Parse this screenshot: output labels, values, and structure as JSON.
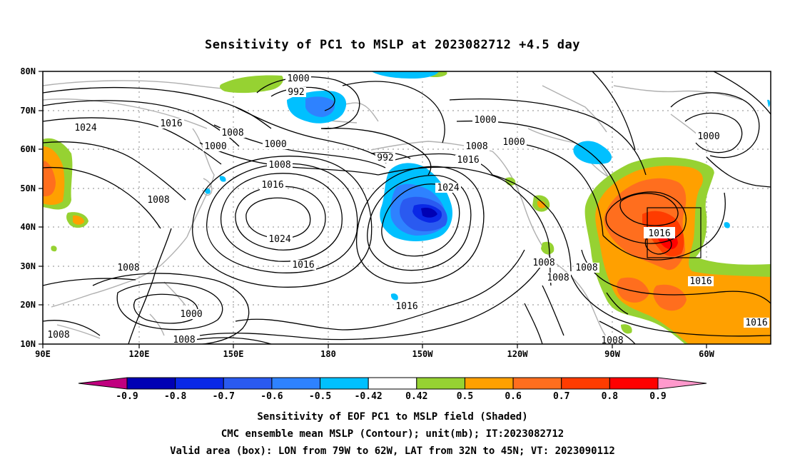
{
  "title": "Sensitivity of PC1 to MSLP at 2023082712 +4.5 day",
  "lat_ticks": [
    "80N",
    "70N",
    "60N",
    "50N",
    "40N",
    "30N",
    "20N",
    "10N"
  ],
  "lon_ticks": [
    "90E",
    "120E",
    "150E",
    "180",
    "150W",
    "120W",
    "90W",
    "60W"
  ],
  "contour_labels": [
    "1000",
    "992",
    "1024",
    "1016",
    "1008",
    "1000",
    "1000",
    "1008",
    "1000",
    "992",
    "1008",
    "1016",
    "1024",
    "1008",
    "1000",
    "1000",
    "1008",
    "1016",
    "1024",
    "1016",
    "1016",
    "1008",
    "1008",
    "1008",
    "1016",
    "1008",
    "1000",
    "1008",
    "1008",
    "1016"
  ],
  "box_label": "1016",
  "colorbar": {
    "labels": [
      "-0.9",
      "-0.8",
      "-0.7",
      "-0.6",
      "-0.5",
      "-0.42",
      "0.42",
      "0.5",
      "0.6",
      "0.7",
      "0.8",
      "0.9"
    ],
    "colors": [
      "#c0007f",
      "#0000b4",
      "#0a28e6",
      "#2a5af0",
      "#2e82ff",
      "#00c0ff",
      "#ffffff",
      "#96d232",
      "#ffa000",
      "#ff6e1e",
      "#ff3c00",
      "#ff0000",
      "#ff99cc"
    ]
  },
  "captions": [
    "Sensitivity of EOF PC1 to MSLP field (Shaded)",
    "CMC ensemble mean MSLP (Contour); unit(mb); IT:2023082712",
    "Valid area (box): LON from 79W to 62W, LAT from 32N to 45N; VT: 2023090112"
  ]
}
